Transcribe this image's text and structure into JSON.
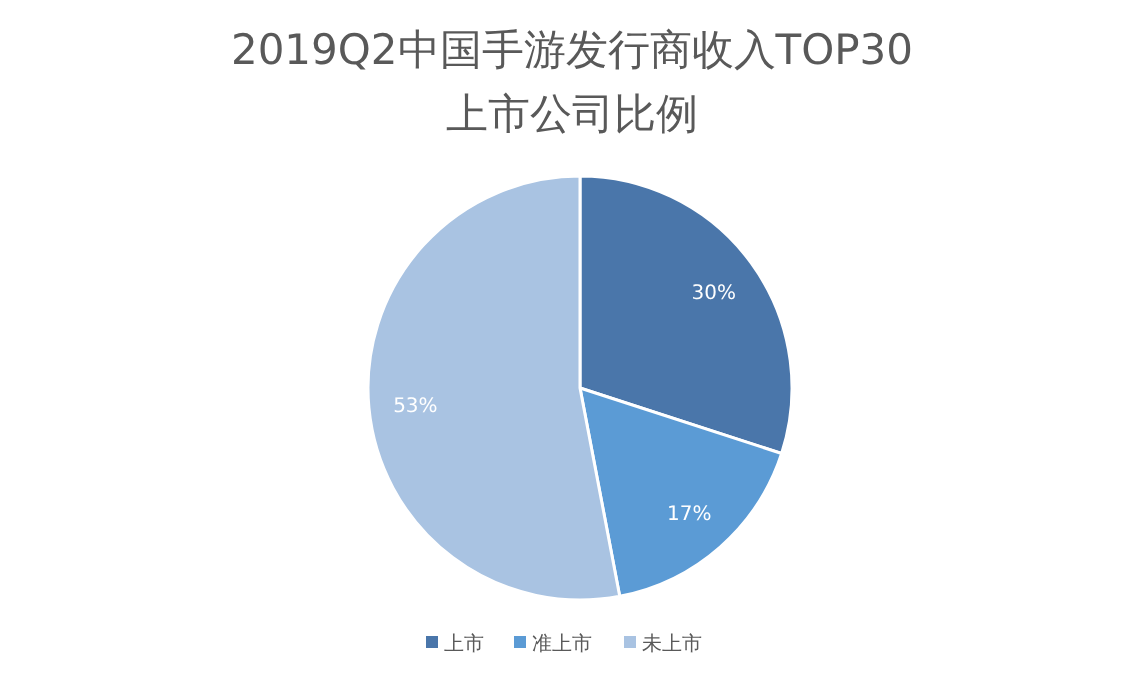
{
  "chart_data": {
    "type": "pie",
    "title": "2019Q2中国手游发行商收入TOP30",
    "subtitle": "上市公司比例",
    "categories": [
      "上市",
      "准上市",
      "未上市"
    ],
    "values": [
      30,
      17,
      53
    ],
    "colors": [
      "#4a76aa",
      "#5b9bd5",
      "#a9c3e2"
    ],
    "value_labels": [
      "30%",
      "17%",
      "53%"
    ],
    "legend": "bottom"
  }
}
